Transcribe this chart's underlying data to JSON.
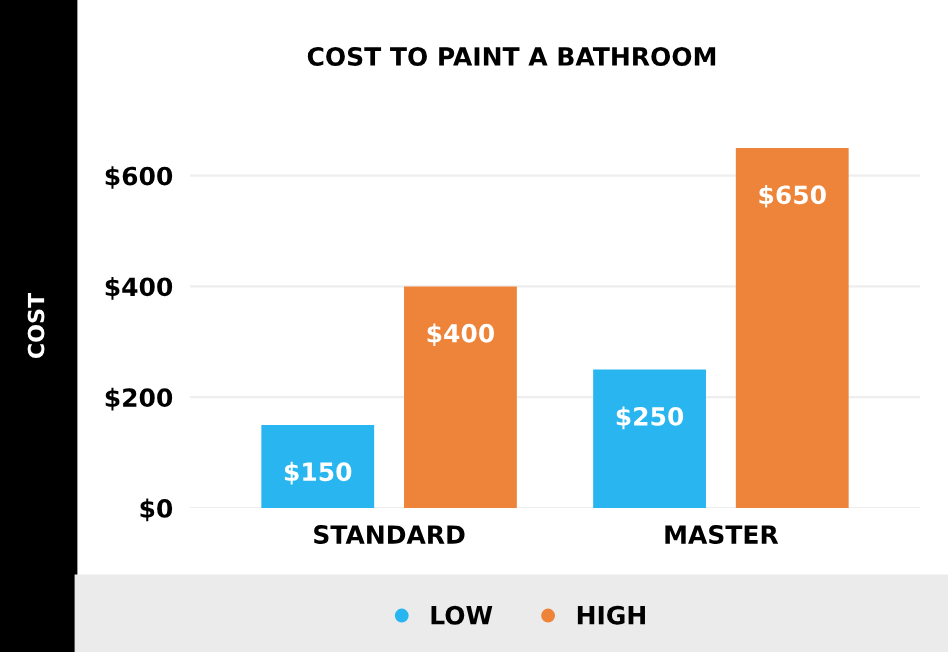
{
  "chart_data": {
    "type": "bar",
    "title": "COST TO PAINT A BATHROOM",
    "ylabel": "COST",
    "categories": [
      "STANDARD",
      "MASTER"
    ],
    "series": [
      {
        "name": "LOW",
        "color": "#29b6f0",
        "values": [
          150,
          250
        ],
        "value_labels": [
          "$150",
          "$250"
        ]
      },
      {
        "name": "HIGH",
        "color": "#ee8439",
        "values": [
          400,
          650
        ],
        "value_labels": [
          "$400",
          "$650"
        ]
      }
    ],
    "ylim": [
      0,
      650
    ],
    "yticks": [
      {
        "value": 0,
        "label": "$0"
      },
      {
        "value": 200,
        "label": "$200"
      },
      {
        "value": 400,
        "label": "$400"
      },
      {
        "value": 600,
        "label": "$600"
      }
    ],
    "grid": "y",
    "legend": "bottom"
  }
}
